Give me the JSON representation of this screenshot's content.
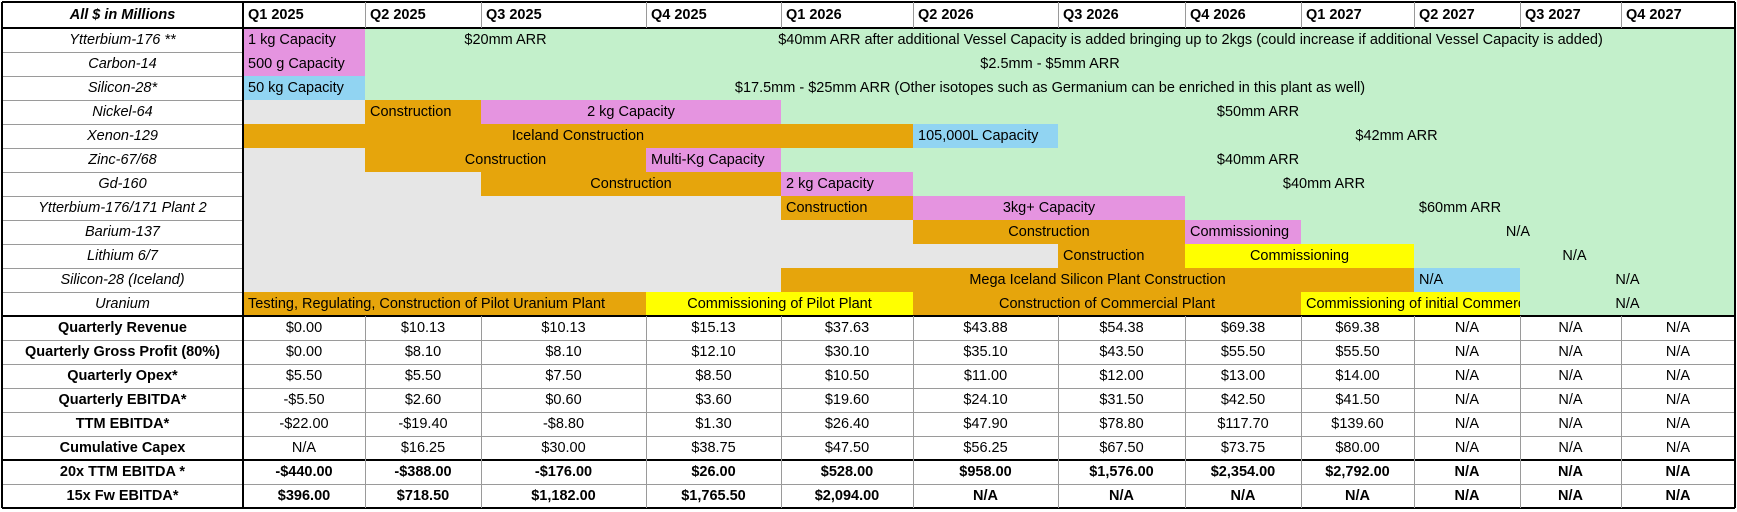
{
  "corner_label": "All $ in Millions",
  "quarters": [
    "Q1 2025",
    "Q2 2025",
    "Q3 2025",
    "Q4 2025",
    "Q1 2026",
    "Q2 2026",
    "Q3 2026",
    "Q4 2026",
    "Q1 2027",
    "Q2 2027",
    "Q3 2027",
    "Q4 2027"
  ],
  "colors": {
    "construction": "#e6a50c",
    "capacity": "#e594e0",
    "arr": "#c3f0cb",
    "blue": "#91d4f2",
    "yellow": "#ffff00",
    "empty": "#e6e6e6"
  },
  "timeline": [
    {
      "label": "Ytterbium-176 **",
      "segments": [
        {
          "text": "1 kg Capacity",
          "color": "capacity"
        },
        {
          "text": "$20mm ARR",
          "color": "arr"
        },
        {
          "text": "$40mm ARR after additional Vessel Capacity is added bringing up to 2kgs (could increase if additional Vessel Capacity is added)",
          "color": "arr"
        }
      ]
    },
    {
      "label": "Carbon-14",
      "segments": [
        {
          "text": "500 g Capacity",
          "color": "capacity"
        },
        {
          "text": "$2.5mm - $5mm ARR",
          "color": "arr"
        }
      ]
    },
    {
      "label": "Silicon-28*",
      "segments": [
        {
          "text": "50 kg Capacity",
          "color": "blue"
        },
        {
          "text": "$17.5mm - $25mm ARR (Other isotopes such as Germanium can be enriched in this plant as well)",
          "color": "arr"
        }
      ]
    },
    {
      "label": "Nickel-64",
      "segments": [
        {
          "text": "",
          "color": "empty"
        },
        {
          "text": "Construction",
          "color": "construction"
        },
        {
          "text": "2 kg Capacity",
          "color": "capacity"
        },
        {
          "text": "$50mm ARR",
          "color": "arr"
        }
      ]
    },
    {
      "label": "Xenon-129",
      "segments": [
        {
          "text": "Iceland Construction",
          "color": "construction"
        },
        {
          "text": "105,000L Capacity",
          "color": "blue"
        },
        {
          "text": "$42mm ARR",
          "color": "arr"
        }
      ]
    },
    {
      "label": "Zinc-67/68",
      "segments": [
        {
          "text": "",
          "color": "empty"
        },
        {
          "text": "Construction",
          "color": "construction"
        },
        {
          "text": "Multi-Kg Capacity",
          "color": "capacity"
        },
        {
          "text": "$40mm ARR",
          "color": "arr"
        }
      ]
    },
    {
      "label": "Gd-160",
      "segments": [
        {
          "text": "",
          "color": "empty"
        },
        {
          "text": "Construction",
          "color": "construction"
        },
        {
          "text": "2 kg Capacity",
          "color": "capacity"
        },
        {
          "text": "$40mm ARR",
          "color": "arr"
        }
      ]
    },
    {
      "label": "Ytterbium-176/171 Plant 2",
      "segments": [
        {
          "text": "",
          "color": "empty"
        },
        {
          "text": "Construction",
          "color": "construction"
        },
        {
          "text": "3kg+ Capacity",
          "color": "capacity"
        },
        {
          "text": "$60mm ARR",
          "color": "arr"
        }
      ]
    },
    {
      "label": "Barium-137",
      "segments": [
        {
          "text": "",
          "color": "empty"
        },
        {
          "text": "Construction",
          "color": "construction"
        },
        {
          "text": "Commissioning",
          "color": "capacity"
        },
        {
          "text": "N/A",
          "color": "arr"
        }
      ]
    },
    {
      "label": "Lithium 6/7",
      "segments": [
        {
          "text": "",
          "color": "empty"
        },
        {
          "text": "Construction",
          "color": "construction"
        },
        {
          "text": "Commissioning",
          "color": "yellow"
        },
        {
          "text": "N/A",
          "color": "arr"
        }
      ]
    },
    {
      "label": "Silicon-28 (Iceland)",
      "segments": [
        {
          "text": "",
          "color": "empty"
        },
        {
          "text": "Mega Iceland Silicon Plant Construction",
          "color": "construction"
        },
        {
          "text": "N/A",
          "color": "blue"
        },
        {
          "text": "N/A",
          "color": "arr"
        }
      ]
    },
    {
      "label": "Uranium",
      "segments": [
        {
          "text": "Testing, Regulating, Construction of Pilot Uranium Plant",
          "color": "construction"
        },
        {
          "text": "Commissioning of Pilot Plant",
          "color": "yellow"
        },
        {
          "text": "Construction of Commercial Plant",
          "color": "construction"
        },
        {
          "text": "Commissioning of initial Commercial Plant",
          "color": "yellow"
        },
        {
          "text": "N/A",
          "color": "arr"
        }
      ]
    }
  ],
  "financials": [
    {
      "label": "Quarterly Revenue",
      "values": [
        "$0.00",
        "$10.13",
        "$10.13",
        "$15.13",
        "$37.63",
        "$43.88",
        "$54.38",
        "$69.38",
        "$69.38",
        "N/A",
        "N/A",
        "N/A"
      ]
    },
    {
      "label": "Quarterly Gross Profit (80%)",
      "values": [
        "$0.00",
        "$8.10",
        "$8.10",
        "$12.10",
        "$30.10",
        "$35.10",
        "$43.50",
        "$55.50",
        "$55.50",
        "N/A",
        "N/A",
        "N/A"
      ]
    },
    {
      "label": "Quarterly Opex*",
      "values": [
        "$5.50",
        "$5.50",
        "$7.50",
        "$8.50",
        "$10.50",
        "$11.00",
        "$12.00",
        "$13.00",
        "$14.00",
        "N/A",
        "N/A",
        "N/A"
      ]
    },
    {
      "label": "Quarterly EBITDA*",
      "values": [
        "-$5.50",
        "$2.60",
        "$0.60",
        "$3.60",
        "$19.60",
        "$24.10",
        "$31.50",
        "$42.50",
        "$41.50",
        "N/A",
        "N/A",
        "N/A"
      ]
    },
    {
      "label": "TTM EBITDA*",
      "values": [
        "-$22.00",
        "-$19.40",
        "-$8.80",
        "$1.30",
        "$26.40",
        "$47.90",
        "$78.80",
        "$117.70",
        "$139.60",
        "N/A",
        "N/A",
        "N/A"
      ]
    },
    {
      "label": "Cumulative Capex",
      "values": [
        "N/A",
        "$16.25",
        "$30.00",
        "$38.75",
        "$47.50",
        "$56.25",
        "$67.50",
        "$73.75",
        "$80.00",
        "N/A",
        "N/A",
        "N/A"
      ]
    }
  ],
  "valuations": [
    {
      "label": "20x TTM EBITDA *",
      "values": [
        "-$440.00",
        "-$388.00",
        "-$176.00",
        "$26.00",
        "$528.00",
        "$958.00",
        "$1,576.00",
        "$2,354.00",
        "$2,792.00",
        "N/A",
        "N/A",
        "N/A"
      ]
    },
    {
      "label": "15x Fw EBITDA*",
      "values": [
        "$396.00",
        "$718.50",
        "$1,182.00",
        "$1,765.50",
        "$2,094.00",
        "N/A",
        "N/A",
        "N/A",
        "N/A",
        "N/A",
        "N/A",
        "N/A"
      ]
    }
  ]
}
